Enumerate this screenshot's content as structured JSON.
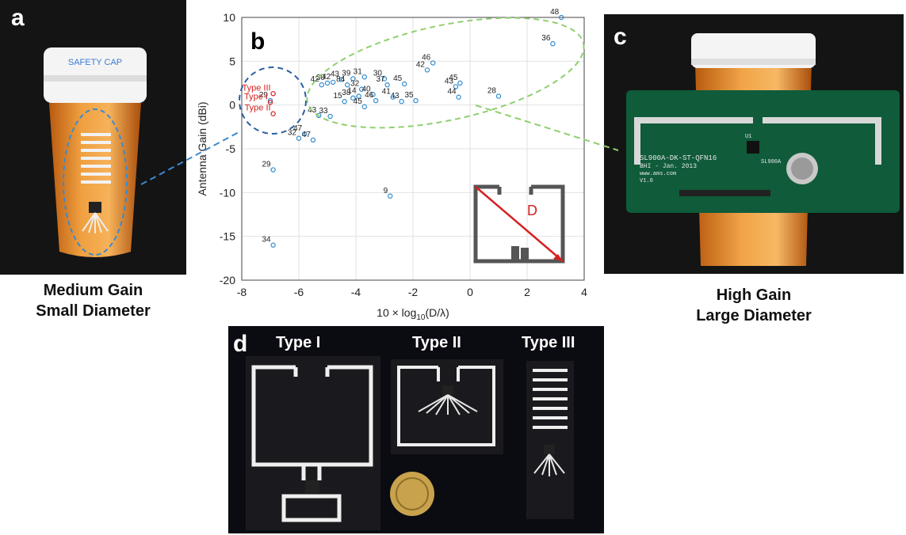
{
  "panels": {
    "a": "a",
    "b": "b",
    "c": "c",
    "d": "d"
  },
  "captions": {
    "a_line1": "Medium Gain",
    "a_line2": "Small Diameter",
    "c_line1": "High Gain",
    "c_line2": "Large Diameter"
  },
  "photo_a": {
    "cap_text": "SAFETY CAP"
  },
  "photo_c": {
    "board_line1": "SL900A-DK-ST-QFN16",
    "board_line2": "BHI - Jan. 2013",
    "board_line3": "www.ams.com",
    "board_line4": "V1.0",
    "chip_label": "SL900A",
    "chip_ref": "U1"
  },
  "photo_d": {
    "type1": "Type I",
    "type2": "Type II",
    "type3": "Type III"
  },
  "inset": {
    "d_label": "D"
  },
  "colors": {
    "marker": "#2f8bd0",
    "type_marker": "#d42020",
    "blue_dashed": "#2a5fa0",
    "green_dashed": "#8fcf6f",
    "leader_blue": "#3a8ad0",
    "leader_green": "#8fcf6f",
    "diag": "#d42020"
  },
  "chart_data": {
    "type": "scatter",
    "xlabel_pre": "10 × log",
    "xlabel_sub": "10",
    "xlabel_post": "(D/λ)",
    "ylabel": "Antenna Gain (dBi)",
    "xlim": [
      -8,
      4
    ],
    "ylim": [
      -20,
      10
    ],
    "xticks": [
      "-8",
      "-6",
      "-4",
      "-2",
      "0",
      "2",
      "4"
    ],
    "yticks": [
      "10",
      "5",
      "0",
      "-5",
      "-10",
      "-15",
      "-20"
    ],
    "grid": true,
    "points": [
      {
        "x": 3.2,
        "y": 10.0,
        "label": "48"
      },
      {
        "x": 2.9,
        "y": 7.0,
        "label": "36"
      },
      {
        "x": -1.3,
        "y": 4.8,
        "label": "46"
      },
      {
        "x": -1.5,
        "y": 4.0,
        "label": "42"
      },
      {
        "x": -2.3,
        "y": 2.4,
        "label": "45"
      },
      {
        "x": -0.35,
        "y": 2.5,
        "label": "45"
      },
      {
        "x": -0.5,
        "y": 2.1,
        "label": "43"
      },
      {
        "x": -0.4,
        "y": 0.9,
        "label": "44"
      },
      {
        "x": 1.0,
        "y": 1.0,
        "label": "28"
      },
      {
        "x": -1.9,
        "y": 0.5,
        "label": "35"
      },
      {
        "x": -2.4,
        "y": 0.4,
        "label": "43"
      },
      {
        "x": -2.7,
        "y": 0.9,
        "label": "41"
      },
      {
        "x": -3.0,
        "y": 3.0,
        "label": "30"
      },
      {
        "x": -2.9,
        "y": 2.3,
        "label": "37"
      },
      {
        "x": -3.7,
        "y": 3.2,
        "label": "31"
      },
      {
        "x": -4.1,
        "y": 3.0,
        "label": "39"
      },
      {
        "x": -4.5,
        "y": 2.9,
        "label": "43"
      },
      {
        "x": -4.3,
        "y": 2.3,
        "label": "84"
      },
      {
        "x": -3.8,
        "y": 1.8,
        "label": "32"
      },
      {
        "x": -3.4,
        "y": 1.2,
        "label": "40"
      },
      {
        "x": -3.9,
        "y": 1.0,
        "label": "14"
      },
      {
        "x": -4.1,
        "y": 0.8,
        "label": "38"
      },
      {
        "x": -3.3,
        "y": 0.5,
        "label": "46"
      },
      {
        "x": -3.7,
        "y": -0.2,
        "label": "45"
      },
      {
        "x": -4.4,
        "y": 0.4,
        "label": "15"
      },
      {
        "x": -4.8,
        "y": 2.6,
        "label": "42"
      },
      {
        "x": -5.0,
        "y": 2.5,
        "label": "30"
      },
      {
        "x": -5.2,
        "y": 2.3,
        "label": "42"
      },
      {
        "x": -6.9,
        "y": 1.3,
        "label": "Type III",
        "type": true
      },
      {
        "x": -7.0,
        "y": 0.5,
        "label": "29"
      },
      {
        "x": -7.0,
        "y": 0.3,
        "label": "Type I",
        "type": true
      },
      {
        "x": -6.9,
        "y": -1.0,
        "label": "Type II",
        "type": true
      },
      {
        "x": -5.3,
        "y": -1.2,
        "label": "43"
      },
      {
        "x": -4.9,
        "y": -1.3,
        "label": "33"
      },
      {
        "x": -5.8,
        "y": -3.3,
        "label": "47"
      },
      {
        "x": -6.0,
        "y": -3.8,
        "label": "32"
      },
      {
        "x": -5.5,
        "y": -4.0,
        "label": "47"
      },
      {
        "x": -6.9,
        "y": -7.4,
        "label": "29"
      },
      {
        "x": -2.8,
        "y": -10.4,
        "label": "9"
      },
      {
        "x": -6.9,
        "y": -16.0,
        "label": "34"
      }
    ]
  }
}
